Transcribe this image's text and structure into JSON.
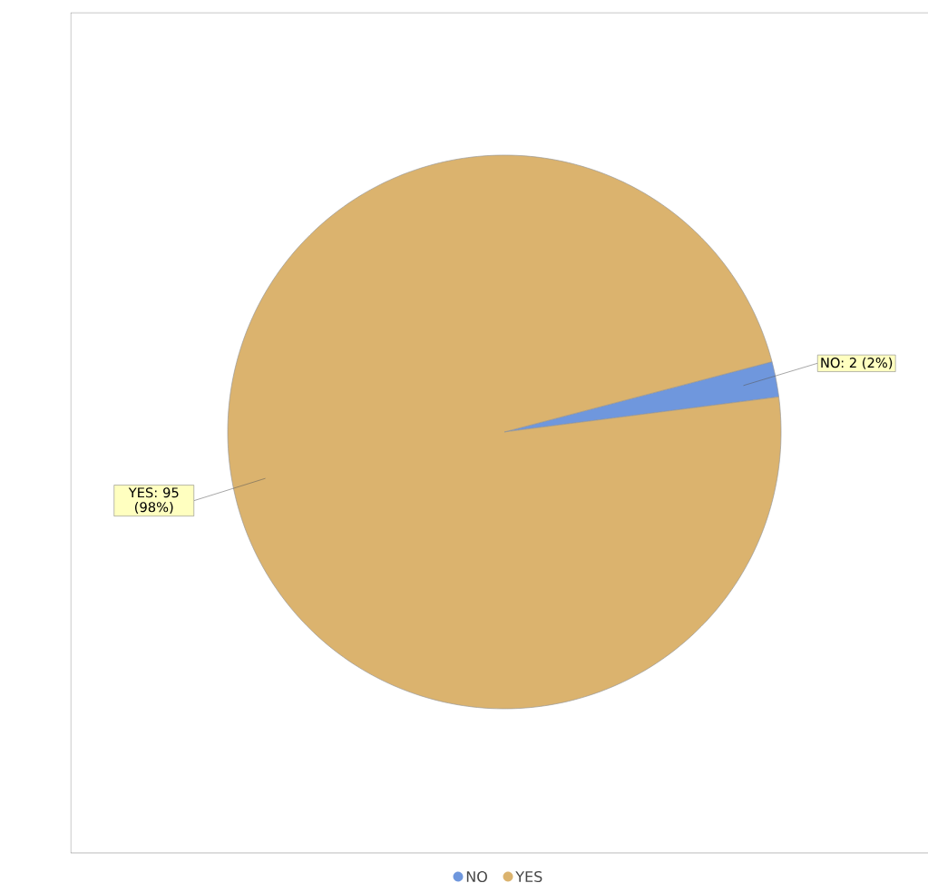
{
  "chart_data": {
    "type": "pie",
    "categories": [
      "NO",
      "YES"
    ],
    "values": [
      2,
      95
    ],
    "colors": [
      "#6f97dd",
      "#dbb36e"
    ],
    "value_labels": [
      "NO: 2 (2%)",
      "YES: 95 (98%)"
    ],
    "legend": "bottom"
  }
}
